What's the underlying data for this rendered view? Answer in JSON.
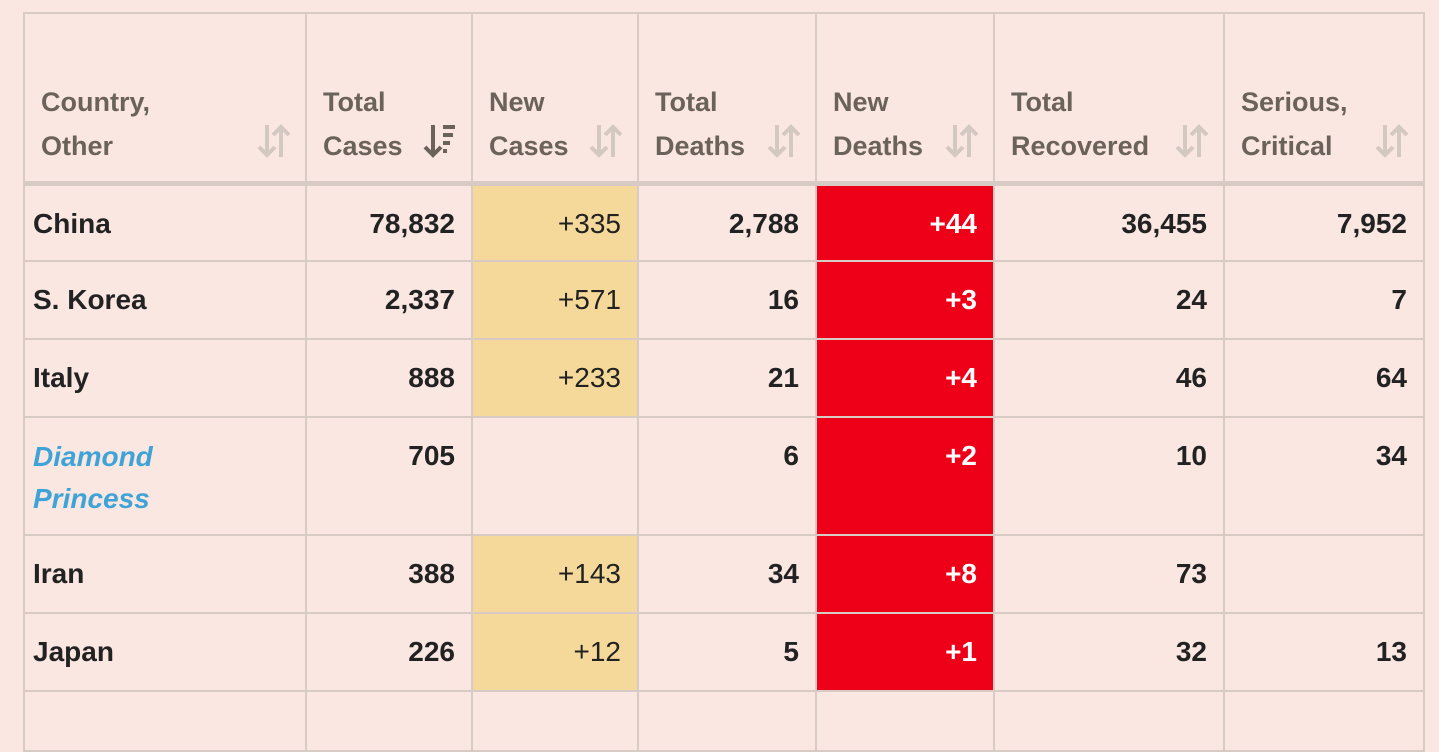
{
  "table": {
    "headers": [
      {
        "line1": "Country,",
        "line2": "Other",
        "icon": "sort-icon"
      },
      {
        "line1": "Total",
        "line2": "Cases",
        "icon": "sort-desc-icon"
      },
      {
        "line1": "New",
        "line2": "Cases",
        "icon": "sort-icon"
      },
      {
        "line1": "Total",
        "line2": "Deaths",
        "icon": "sort-icon"
      },
      {
        "line1": "New",
        "line2": "Deaths",
        "icon": "sort-icon"
      },
      {
        "line1": "Total",
        "line2": "Recovered",
        "icon": "sort-icon"
      },
      {
        "line1": "Serious,",
        "line2": "Critical",
        "icon": "sort-icon"
      }
    ],
    "rows": [
      {
        "country": "China",
        "total_cases": "78,832",
        "new_cases": "+335",
        "total_deaths": "2,788",
        "new_deaths": "+44",
        "total_recovered": "36,455",
        "serious_critical": "7,952"
      },
      {
        "country": "S. Korea",
        "total_cases": "2,337",
        "new_cases": "+571",
        "total_deaths": "16",
        "new_deaths": "+3",
        "total_recovered": "24",
        "serious_critical": "7"
      },
      {
        "country": "Italy",
        "total_cases": "888",
        "new_cases": "+233",
        "total_deaths": "21",
        "new_deaths": "+4",
        "total_recovered": "46",
        "serious_critical": "64"
      },
      {
        "country_line1": "Diamond",
        "country_line2": "Princess",
        "total_cases": "705",
        "new_cases": "",
        "total_deaths": "6",
        "new_deaths": "+2",
        "total_recovered": "10",
        "serious_critical": "34"
      },
      {
        "country": "Iran",
        "total_cases": "388",
        "new_cases": "+143",
        "total_deaths": "34",
        "new_deaths": "+8",
        "total_recovered": "73",
        "serious_critical": ""
      },
      {
        "country": "Japan",
        "total_cases": "226",
        "new_cases": "+12",
        "total_deaths": "5",
        "new_deaths": "+1",
        "total_recovered": "32",
        "serious_critical": "13"
      }
    ]
  },
  "colors": {
    "page_background": "#fae7e1",
    "new_cases_highlight": "#f5d99a",
    "new_deaths_highlight": "#ee0018",
    "link_color": "#3ea3d6",
    "header_text": "#6b625c",
    "grid_border": "#d8cbc5"
  }
}
